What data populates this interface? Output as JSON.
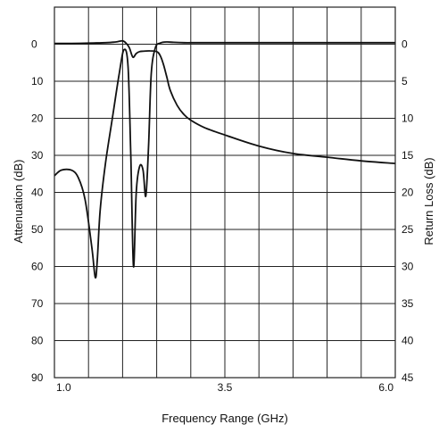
{
  "chart_data": {
    "type": "line",
    "title": "",
    "xlabel": "Frequency Range (GHz)",
    "ylabel": "Attenuation (dB)",
    "y2label": "Return Loss (dB)",
    "xlim": [
      1.0,
      6.0
    ],
    "ylim": [
      90,
      -10
    ],
    "y2lim": [
      45,
      -5
    ],
    "grid": true,
    "x_tick_labels": [
      {
        "value": 1.0,
        "label": "1.0"
      },
      {
        "value": 3.5,
        "label": "3.5"
      },
      {
        "value": 6.0,
        "label": "6.0"
      }
    ],
    "x_grid": [
      1.0,
      1.5,
      2.0,
      2.5,
      3.0,
      3.5,
      4.0,
      4.5,
      5.0,
      5.5,
      6.0
    ],
    "y_ticks": [
      0,
      10,
      20,
      30,
      40,
      50,
      60,
      70,
      80,
      90
    ],
    "y_tick_labels": [
      "0",
      "10",
      "20",
      "30",
      "40",
      "50",
      "60",
      "70",
      "80",
      "90"
    ],
    "y2_ticks": [
      0,
      5,
      10,
      15,
      20,
      25,
      30,
      35,
      40,
      45
    ],
    "y2_tick_labels": [
      "0",
      "5",
      "10",
      "15",
      "20",
      "25",
      "30",
      "35",
      "40",
      "45"
    ],
    "colors": {
      "line": "#111111",
      "grid": "#222222",
      "background": "#ffffff"
    },
    "series": [
      {
        "id": "insertion",
        "axis": "left",
        "x": [
          1.0,
          1.25,
          1.5,
          1.75,
          1.9,
          2.0,
          2.05,
          2.1,
          2.15,
          2.2,
          2.25,
          2.3,
          2.4,
          2.5,
          2.55,
          2.6,
          2.65,
          2.7,
          2.8,
          2.9,
          3.0,
          3.2,
          3.5,
          4.0,
          4.5,
          5.0,
          5.5,
          6.0
        ],
        "y": [
          -0.2,
          -0.2,
          -0.3,
          -0.4,
          -0.6,
          -0.9,
          -0.3,
          1.0,
          3.5,
          2.5,
          2.0,
          1.9,
          1.8,
          2.0,
          3.0,
          5.5,
          9.0,
          12.5,
          16.5,
          19.0,
          20.5,
          22.5,
          24.5,
          27.5,
          29.5,
          30.5,
          31.5,
          32.2
        ]
      },
      {
        "id": "return_loss",
        "axis": "left",
        "x": [
          1.0,
          1.1,
          1.25,
          1.35,
          1.45,
          1.55,
          1.6,
          1.63,
          1.67,
          1.75,
          1.85,
          1.95,
          2.02,
          2.08,
          2.12,
          2.16,
          2.2,
          2.25,
          2.3,
          2.34,
          2.38,
          2.42,
          2.48,
          2.55,
          2.65,
          2.75,
          2.9,
          3.1,
          3.5,
          4.0,
          5.0,
          6.0
        ],
        "y": [
          35.5,
          34.0,
          34.0,
          36.0,
          42.0,
          55.0,
          63.0,
          58.0,
          45.0,
          32.0,
          20.0,
          8.0,
          1.5,
          6.0,
          30.0,
          60.0,
          40.0,
          33.0,
          34.0,
          41.0,
          28.0,
          8.0,
          1.0,
          -0.3,
          -0.6,
          -0.5,
          -0.4,
          -0.4,
          -0.4,
          -0.4,
          -0.4,
          -0.4
        ]
      }
    ]
  }
}
